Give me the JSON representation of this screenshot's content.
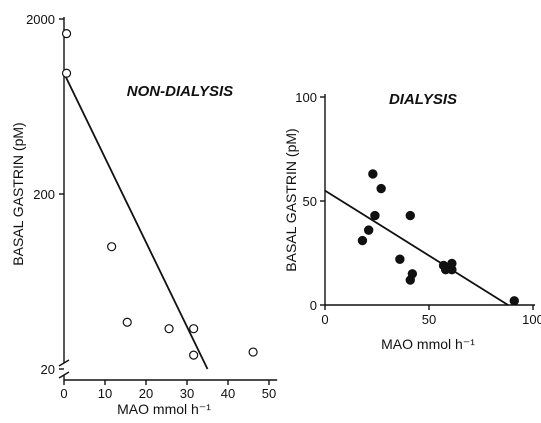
{
  "chart_data": [
    {
      "type": "scatter",
      "title": "NON-DIALYSIS",
      "xlabel": "MAO mmol h⁻¹",
      "ylabel": "BASAL GASTRIN (pM)",
      "xlim": [
        0,
        52
      ],
      "ylim": [
        20,
        2000
      ],
      "y_scale": "log",
      "axis_break_x": true,
      "x_ticks": [
        0,
        10,
        20,
        30,
        40,
        50
      ],
      "x_tick_labels": [
        "0",
        "10",
        "20",
        "30",
        "40",
        "50"
      ],
      "y_ticks": [
        20,
        200,
        2000
      ],
      "y_tick_labels": [
        "20",
        "200",
        "2000"
      ],
      "marker": "open-circle",
      "series": [
        {
          "x": [
            0.5,
            0.5,
            11.5,
            15.3,
            25.5,
            31.5,
            31.5,
            46
          ],
          "y": [
            1650,
            980,
            100,
            37,
            34,
            34,
            24,
            25
          ]
        }
      ],
      "fit_line": {
        "x": [
          0,
          35
        ],
        "y": [
          980,
          20
        ]
      },
      "grid": false
    },
    {
      "type": "scatter",
      "title": "DIALYSIS",
      "xlabel": "MAO mmol h⁻¹",
      "ylabel": "BASAL GASTRIN (pM)",
      "xlim": [
        0,
        100
      ],
      "ylim": [
        0,
        100
      ],
      "x_ticks": [
        0,
        50,
        100
      ],
      "x_tick_labels": [
        "0",
        "50",
        "100"
      ],
      "y_ticks": [
        0,
        50,
        100
      ],
      "y_tick_labels": [
        "0",
        "50",
        "100"
      ],
      "marker": "filled-circle",
      "series": [
        {
          "x": [
            18,
            21,
            23,
            24,
            27,
            36,
            41,
            41,
            42,
            57,
            58,
            61,
            61,
            91
          ],
          "y": [
            31,
            36,
            63,
            43,
            56,
            22,
            43,
            12,
            15,
            19,
            17,
            17,
            20,
            2
          ]
        }
      ],
      "fit_line": {
        "x": [
          0,
          88
        ],
        "y": [
          55,
          0
        ]
      },
      "grid": false
    }
  ]
}
